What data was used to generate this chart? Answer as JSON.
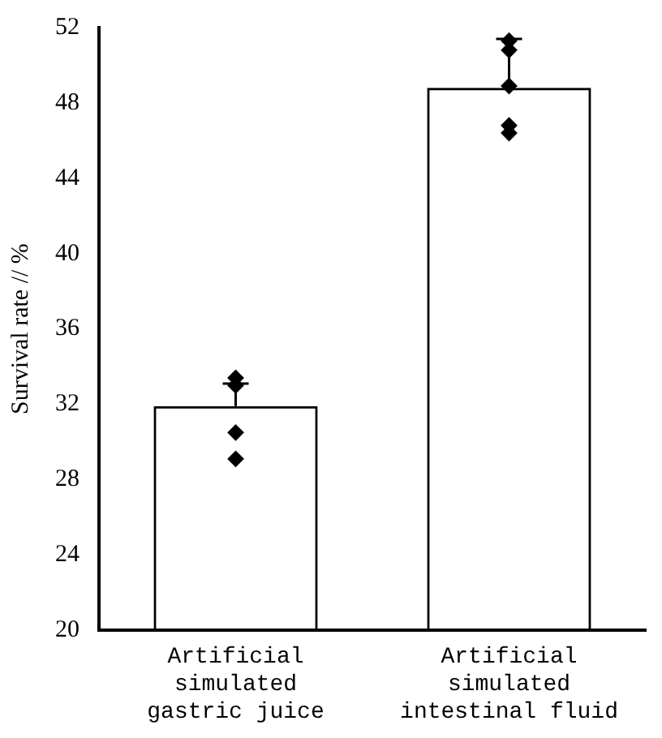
{
  "chart_data": {
    "type": "bar",
    "ylabel": "Survival rate // %",
    "categories": [
      "Artificial simulated gastric juice",
      "Artificial simulated intestinal fluid"
    ],
    "series": [
      {
        "type": "bar",
        "color": "#000000",
        "values": [
          31.9,
          48.8
        ],
        "errors": [
          [
            31.9,
            33.1
          ],
          [
            48.8,
            51.4
          ]
        ]
      },
      {
        "type": "scatter",
        "color": "#000000",
        "x": [
          "Artificial simulated gastric juice",
          "Artificial simulated gastric juice",
          "Artificial simulated gastric juice",
          "Artificial simulated gastric juice",
          "Artificial simulated intestinal fluid",
          "Artificial simulated intestinal fluid",
          "Artificial simulated intestinal fluid",
          "Artificial simulated intestinal fluid",
          "Artificial simulated intestinal fluid"
        ],
        "values": [
          33.4,
          33.0,
          30.5,
          29.1,
          51.3,
          50.8,
          48.9,
          46.8,
          46.4
        ]
      }
    ],
    "marker": "diamond",
    "ylim": [
      20,
      52
    ],
    "yticks": [
      20,
      24,
      28,
      32,
      36,
      40,
      44,
      48,
      52
    ],
    "grid": false,
    "legend": false
  }
}
